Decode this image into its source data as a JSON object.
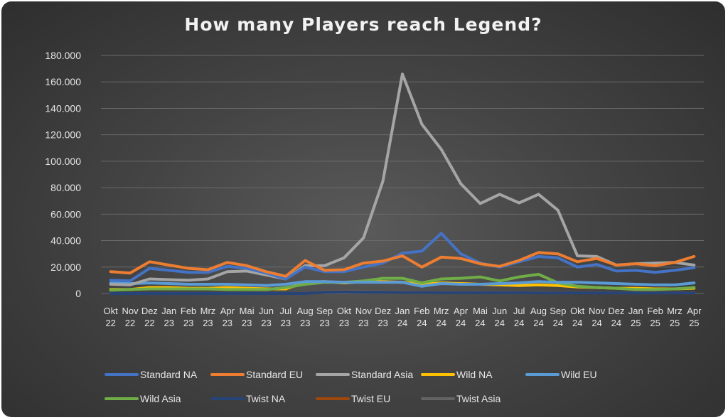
{
  "chart_data": {
    "type": "line",
    "title": "How many Players reach Legend?",
    "xlabel": "",
    "ylabel": "",
    "ylim": [
      0,
      180000
    ],
    "yticks": [
      0,
      20000,
      40000,
      60000,
      80000,
      100000,
      120000,
      140000,
      160000,
      180000
    ],
    "ytick_labels": [
      "0",
      "20.000",
      "40.000",
      "60.000",
      "80.000",
      "100.000",
      "120.000",
      "140.000",
      "160.000",
      "180.000"
    ],
    "grid": true,
    "legend_position": "bottom",
    "categories": [
      [
        "Okt",
        "22"
      ],
      [
        "Nov",
        "22"
      ],
      [
        "Dez",
        "22"
      ],
      [
        "Jan",
        "23"
      ],
      [
        "Feb",
        "23"
      ],
      [
        "Mrz",
        "23"
      ],
      [
        "Apr",
        "23"
      ],
      [
        "Mai",
        "23"
      ],
      [
        "Jun",
        "23"
      ],
      [
        "Jul",
        "23"
      ],
      [
        "Aug",
        "23"
      ],
      [
        "Sep",
        "23"
      ],
      [
        "Okt",
        "23"
      ],
      [
        "Nov",
        "23"
      ],
      [
        "Dez",
        "23"
      ],
      [
        "Jan",
        "24"
      ],
      [
        "Feb",
        "24"
      ],
      [
        "Mrz",
        "24"
      ],
      [
        "Apr",
        "24"
      ],
      [
        "Mai",
        "24"
      ],
      [
        "Jun",
        "24"
      ],
      [
        "Jul",
        "24"
      ],
      [
        "Aug",
        "24"
      ],
      [
        "Sep",
        "24"
      ],
      [
        "Okt",
        "24"
      ],
      [
        "Nov",
        "24"
      ],
      [
        "Dez",
        "24"
      ],
      [
        "Jan",
        "25"
      ],
      [
        "Feb",
        "25"
      ],
      [
        "Mrz",
        "25"
      ],
      [
        "Apr",
        "25"
      ]
    ],
    "series": [
      {
        "name": "Standard NA",
        "color": "#4472c4",
        "values": [
          10000,
          9500,
          19000,
          17500,
          16000,
          16000,
          20500,
          19000,
          15500,
          11000,
          20000,
          16500,
          16500,
          20000,
          23000,
          30500,
          32000,
          45500,
          30000,
          23000,
          20000,
          24000,
          28000,
          27000,
          20000,
          22000,
          17000,
          17500,
          16000,
          17500,
          19500
        ]
      },
      {
        "name": "Standard EU",
        "color": "#ed7d31",
        "values": [
          16500,
          15500,
          24000,
          21500,
          19000,
          18000,
          23500,
          21000,
          16500,
          13000,
          25000,
          17500,
          18000,
          23000,
          24500,
          28500,
          20000,
          27500,
          26500,
          22500,
          20500,
          25000,
          31000,
          30000,
          24000,
          26500,
          21500,
          22500,
          21000,
          23500,
          28000
        ]
      },
      {
        "name": "Standard Asia",
        "color": "#a5a5a5",
        "values": [
          7000,
          6500,
          11000,
          10500,
          10000,
          11000,
          16500,
          17000,
          14000,
          11000,
          21000,
          21000,
          27000,
          42000,
          85000,
          166000,
          128000,
          109000,
          83000,
          68000,
          75000,
          68500,
          75000,
          63000,
          28500,
          28000,
          21500,
          22500,
          23000,
          23500,
          21500
        ]
      },
      {
        "name": "Wild NA",
        "color": "#ffc000",
        "values": [
          3000,
          3000,
          4500,
          4500,
          4000,
          4000,
          4500,
          4000,
          3500,
          3500,
          8500,
          9000,
          8000,
          9000,
          9000,
          8500,
          7000,
          8000,
          7500,
          7000,
          6500,
          6000,
          6500,
          6000,
          5000,
          4500,
          4000,
          4000,
          3500,
          3500,
          4000
        ]
      },
      {
        "name": "Wild EU",
        "color": "#5b9bd5",
        "values": [
          8000,
          7500,
          8000,
          7500,
          7000,
          7000,
          7000,
          6500,
          6000,
          7000,
          9000,
          9000,
          8500,
          8500,
          8500,
          8500,
          5500,
          7500,
          7000,
          7000,
          7500,
          8000,
          9000,
          8500,
          8500,
          8000,
          7500,
          7000,
          6500,
          6500,
          8000
        ]
      },
      {
        "name": "Wild Asia",
        "color": "#70ad47",
        "values": [
          2500,
          3000,
          3500,
          3500,
          3500,
          3500,
          3000,
          3000,
          3000,
          4500,
          7000,
          8500,
          8500,
          9500,
          11500,
          11500,
          8000,
          11000,
          11500,
          12500,
          9500,
          12500,
          14500,
          8000,
          5500,
          4500,
          4000,
          3000,
          3000,
          3500,
          4500
        ]
      },
      {
        "name": "Twist NA",
        "color": "#264478",
        "values": [
          0,
          0,
          0,
          0,
          0,
          0,
          0,
          0,
          0,
          0,
          0,
          1000,
          1200,
          1000,
          900,
          800,
          800,
          700,
          700,
          600,
          600,
          600,
          500,
          500,
          500,
          500,
          500,
          400,
          400,
          400,
          400
        ]
      },
      {
        "name": "Twist EU",
        "color": "#9e480e",
        "values": [
          0,
          0,
          0,
          0,
          0,
          0,
          0,
          0,
          0,
          0,
          0,
          1200,
          1400,
          1100,
          1000,
          900,
          900,
          800,
          800,
          700,
          700,
          700,
          600,
          600,
          600,
          600,
          500,
          500,
          500,
          500,
          500
        ]
      },
      {
        "name": "Twist Asia",
        "color": "#636363",
        "values": [
          0,
          0,
          0,
          0,
          0,
          0,
          0,
          0,
          0,
          0,
          0,
          1500,
          1800,
          1500,
          1300,
          1200,
          1100,
          1000,
          1000,
          900,
          900,
          800,
          800,
          700,
          700,
          700,
          600,
          600,
          600,
          600,
          600
        ]
      }
    ]
  }
}
